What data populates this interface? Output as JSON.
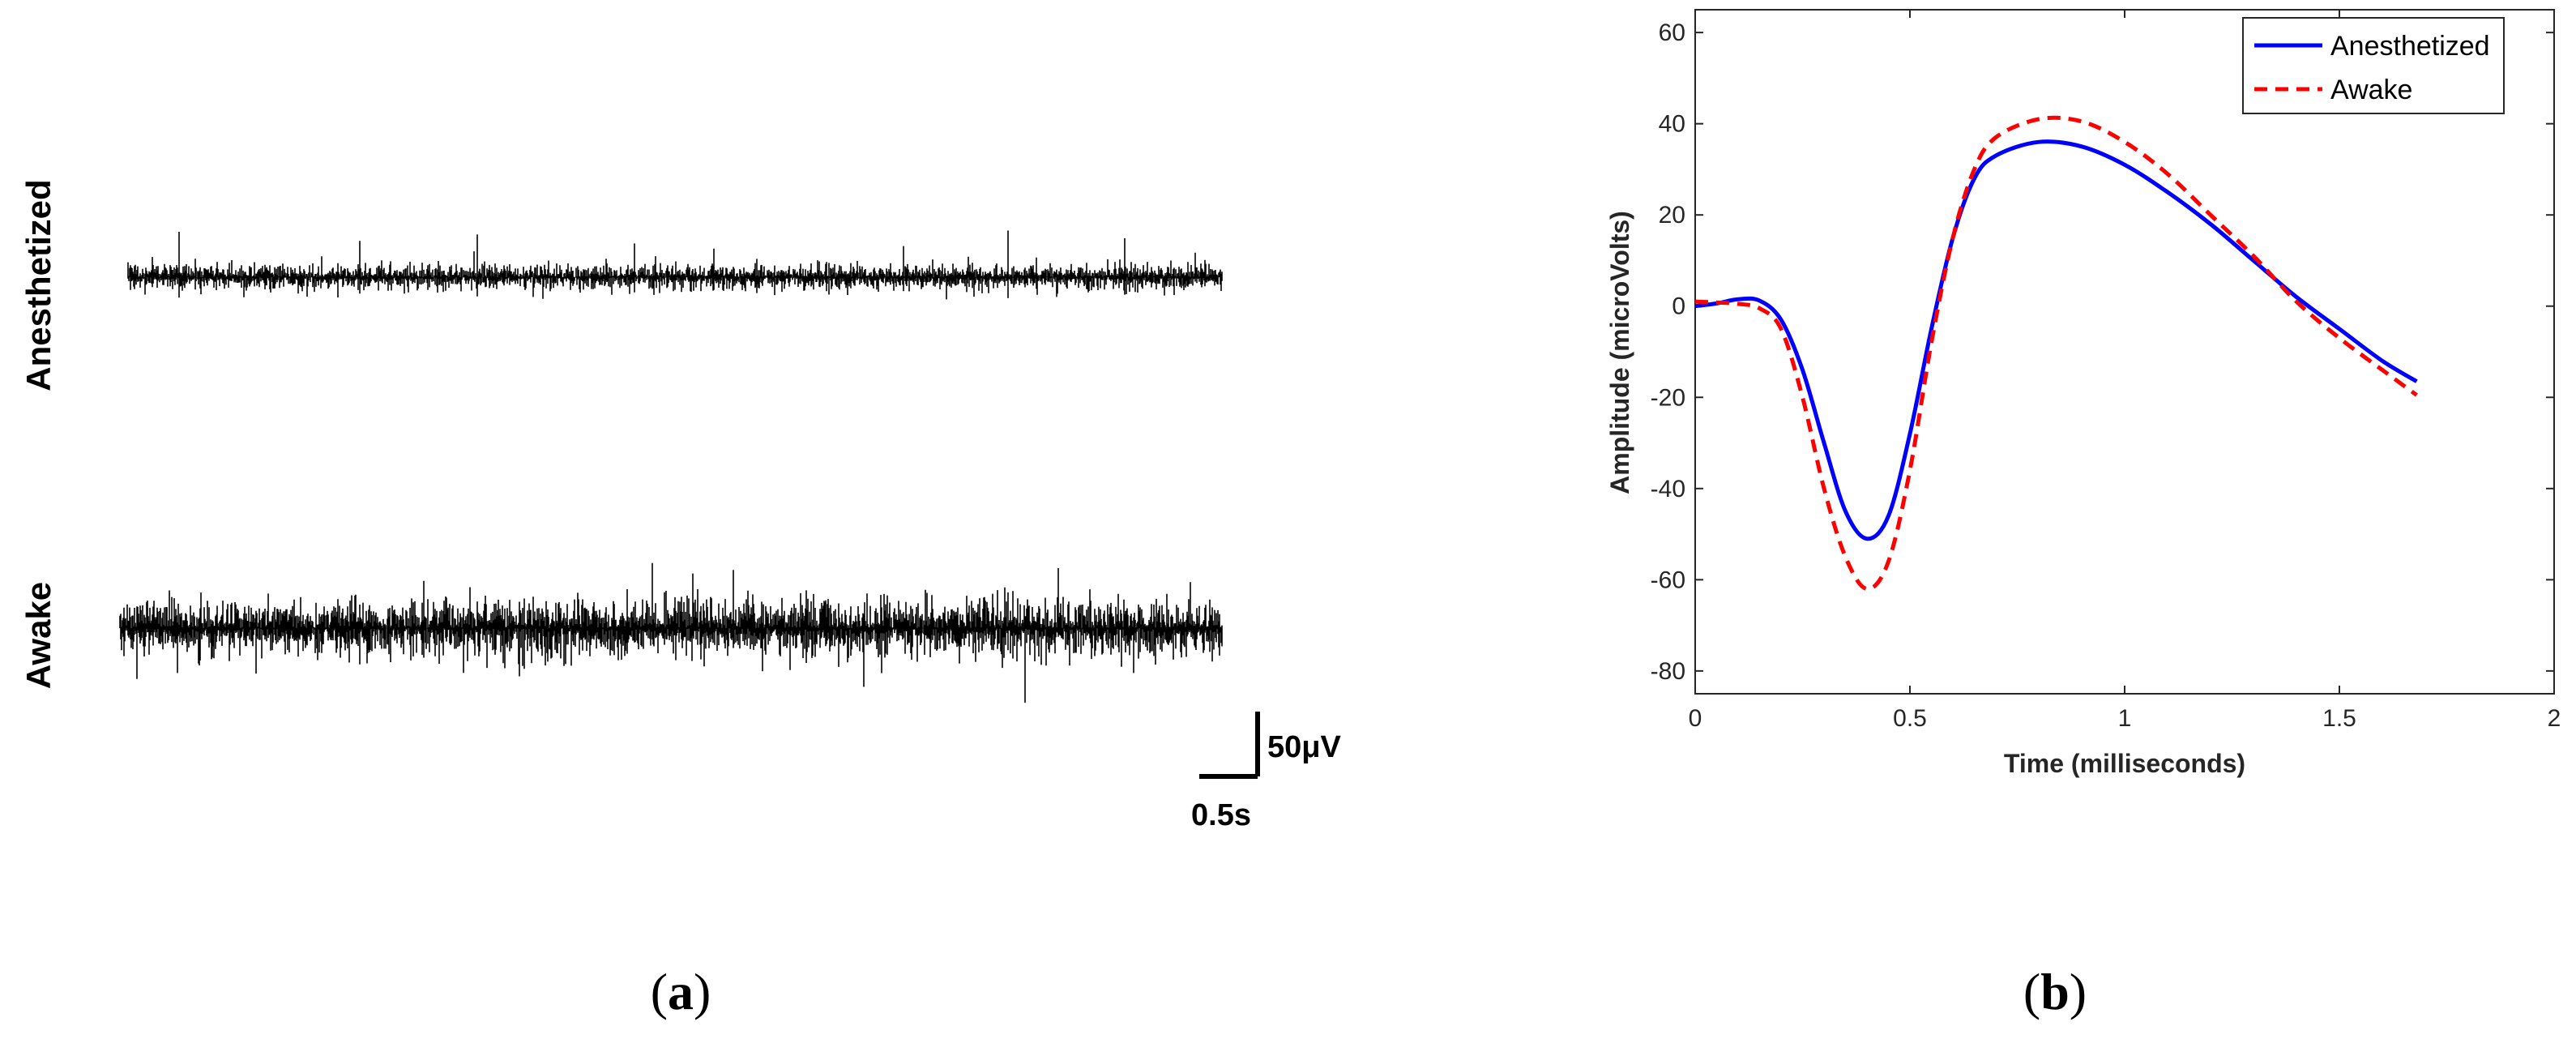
{
  "panels": {
    "a": {
      "label_open": "(",
      "label_letter": "a",
      "label_close": ")"
    },
    "b": {
      "label_open": "(",
      "label_letter": "b",
      "label_close": ")"
    }
  },
  "chart_data": [
    {
      "type": "line",
      "panel": "a",
      "title": "",
      "traces": [
        {
          "name": "Anesthetized",
          "baseline_noise_uV": 5,
          "spikes_uV": [
            35,
            28,
            33,
            26,
            22,
            24,
            36,
            30
          ],
          "color": "#000000"
        },
        {
          "name": "Awake",
          "baseline_noise_uV": 11,
          "spikes_uV": [
            24,
            22,
            25,
            20,
            24,
            21,
            23,
            22
          ],
          "color": "#000000"
        }
      ],
      "scale_bar": {
        "amplitude_label": "50μV",
        "time_label": "0.5s",
        "amplitude_uV": 50,
        "time_s": 0.5
      }
    },
    {
      "type": "line",
      "panel": "b",
      "title": "",
      "xlabel": "Time (milliseconds)",
      "ylabel": "Amplitude (microVolts)",
      "xlim": [
        0,
        2
      ],
      "ylim": [
        -85,
        65
      ],
      "xticks": [
        0,
        0.5,
        1,
        1.5,
        2
      ],
      "xtick_labels": [
        "0",
        "0.5",
        "1",
        "1.5",
        "2"
      ],
      "yticks": [
        -80,
        -60,
        -40,
        -20,
        0,
        20,
        40,
        60
      ],
      "ytick_labels": [
        "-80",
        "-60",
        "-40",
        "-20",
        "0",
        "20",
        "40",
        "60"
      ],
      "legend_placement": "top-right",
      "series": [
        {
          "name": "Anesthetized",
          "color": "#0000ff",
          "style": "solid",
          "x": [
            0,
            0.05,
            0.1,
            0.15,
            0.2,
            0.25,
            0.3,
            0.35,
            0.4,
            0.45,
            0.5,
            0.55,
            0.6,
            0.65,
            0.7,
            0.8,
            0.9,
            1.0,
            1.1,
            1.2,
            1.3,
            1.4,
            1.5,
            1.6,
            1.68
          ],
          "y": [
            0,
            0.6,
            1.5,
            1.2,
            -3,
            -14,
            -30,
            -45,
            -51,
            -46,
            -28,
            -5,
            15,
            28,
            33,
            36,
            35,
            31,
            25,
            18,
            10,
            2,
            -5,
            -12,
            -16.5
          ]
        },
        {
          "name": "Awake",
          "color": "#ff0000",
          "style": "dashed",
          "x": [
            0,
            0.05,
            0.1,
            0.15,
            0.2,
            0.25,
            0.3,
            0.35,
            0.4,
            0.45,
            0.5,
            0.55,
            0.6,
            0.65,
            0.7,
            0.8,
            0.9,
            1.0,
            1.1,
            1.2,
            1.3,
            1.4,
            1.5,
            1.6,
            1.68
          ],
          "y": [
            1,
            0.8,
            0.5,
            -0.5,
            -5,
            -20,
            -40,
            -55,
            -62,
            -56,
            -36,
            -8,
            15,
            30,
            37,
            41,
            40.5,
            36,
            29,
            20,
            11,
            1,
            -7,
            -14,
            -19.5
          ]
        }
      ]
    }
  ]
}
